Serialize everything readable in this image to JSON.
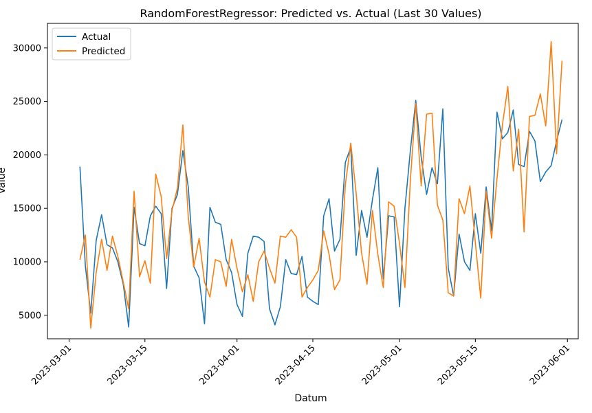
{
  "chart_data": {
    "type": "line",
    "title": "RandomForestRegressor: Predicted vs. Actual (Last 30 Values)",
    "xlabel": "Datum",
    "ylabel": "Value",
    "x_start": "2023-03-03",
    "x_end": "2023-05-31",
    "xlim": [
      "2023-02-25",
      "2023-06-03"
    ],
    "ylim": [
      2800,
      32300
    ],
    "x_ticks": [
      "2023-03-01",
      "2023-03-15",
      "2023-04-01",
      "2023-04-15",
      "2023-05-01",
      "2023-05-15",
      "2023-06-01"
    ],
    "y_ticks": [
      5000,
      10000,
      15000,
      20000,
      25000,
      30000
    ],
    "legend": "top-left",
    "grid": false,
    "series": [
      {
        "name": "Actual",
        "color": "#1f77b4",
        "values": [
          18900,
          9600,
          5200,
          12000,
          14400,
          11600,
          11300,
          10000,
          7900,
          3900,
          15100,
          11700,
          11500,
          14300,
          15200,
          14500,
          7500,
          15000,
          16300,
          20400,
          17000,
          9600,
          8500,
          4200,
          15100,
          13700,
          13500,
          10200,
          9000,
          6000,
          4900,
          10800,
          12400,
          12300,
          11900,
          5600,
          4100,
          5800,
          10200,
          8900,
          8800,
          10500,
          6700,
          6300,
          6000,
          14300,
          15900,
          11000,
          12100,
          19300,
          20700,
          10600,
          14800,
          12300,
          15800,
          18800,
          8400,
          14300,
          14200,
          5800,
          15000,
          20400,
          25100,
          19800,
          16300,
          18800,
          17300,
          24300,
          9400,
          6800,
          12600,
          10000,
          9200,
          14500,
          10800,
          17000,
          12900,
          24000,
          21500,
          22100,
          24200,
          19100,
          18900,
          22200,
          21300,
          17500,
          18400,
          19000,
          21300,
          23300
        ]
      },
      {
        "name": "Predicted",
        "color": "#ff7f0e",
        "values": [
          10200,
          12500,
          3800,
          9000,
          12100,
          9200,
          12400,
          10500,
          8100,
          5600,
          16600,
          8600,
          10100,
          8000,
          18200,
          16100,
          10300,
          14800,
          16900,
          22800,
          14200,
          9500,
          12200,
          8100,
          6700,
          10200,
          10000,
          7700,
          12100,
          9400,
          7200,
          8800,
          6300,
          10000,
          11000,
          9400,
          8000,
          12400,
          12300,
          13000,
          12300,
          6700,
          7600,
          8300,
          9200,
          12900,
          10700,
          7400,
          8300,
          17200,
          21100,
          16400,
          10800,
          7900,
          14800,
          10700,
          7600,
          15600,
          15200,
          11700,
          7600,
          17600,
          24800,
          17100,
          23800,
          23900,
          15300,
          13900,
          7100,
          6800,
          15900,
          14500,
          17100,
          11800,
          6600,
          16600,
          12200,
          17800,
          22800,
          26400,
          18500,
          22400,
          12800,
          23600,
          23700,
          25700,
          22700,
          30600,
          20100,
          28800
        ]
      }
    ]
  }
}
